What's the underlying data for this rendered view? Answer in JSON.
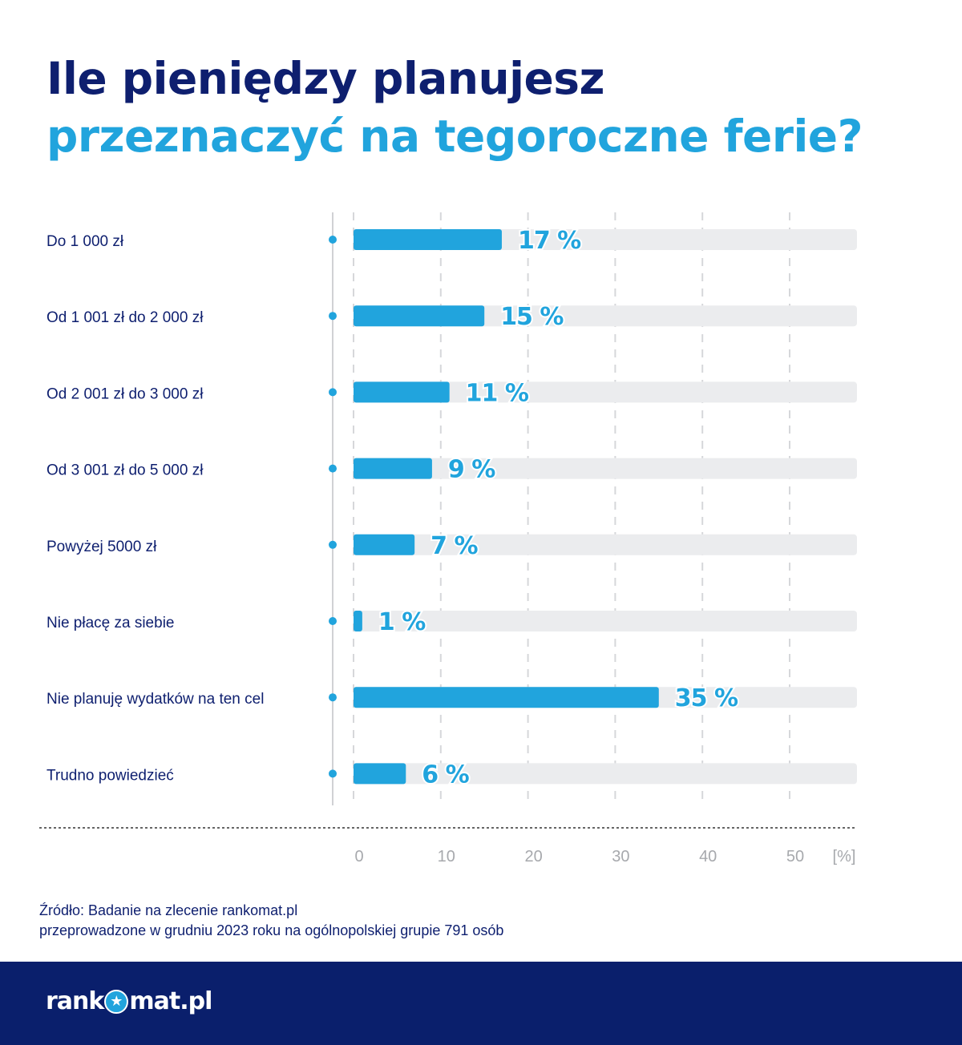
{
  "header": {
    "title_line1": "Ile pieniędzy planujesz",
    "title_line2": "przeznaczyć na tegoroczne ferie?"
  },
  "colors": {
    "bar": "#21a4dd",
    "track": "#ebecee",
    "title_dark": "#0e1f6f",
    "footer": "#0a1f6c"
  },
  "chart_data": {
    "type": "bar",
    "orientation": "horizontal",
    "categories": [
      "Do 1 000 zł",
      "Od 1 001 zł do 2 000 zł",
      "Od 2 001 zł do 3 000 zł",
      "Od 3 001 zł do 5 000 zł",
      "Powyżej 5000 zł",
      "Nie płacę za siebie",
      "Nie planuję wydatków na ten cel",
      "Trudno powiedzieć"
    ],
    "values": [
      17,
      15,
      11,
      9,
      7,
      1,
      35,
      6
    ],
    "value_labels": [
      "17 %",
      "15 %",
      "11 %",
      "9 %",
      "7 %",
      "1 %",
      "35 %",
      "6 %"
    ],
    "xticks": [
      "0",
      "10",
      "20",
      "30",
      "40",
      "50"
    ],
    "xunit": "[%]",
    "xlim": [
      0,
      50
    ],
    "grid": true
  },
  "source": {
    "line1": "Źródło: Badanie na zlecenie rankomat.pl",
    "line2": "przeprowadzone w grudniu 2023 roku na ogólnopolskiej grupie 791 osób"
  },
  "footer": {
    "logo_left": "rank",
    "logo_right": "mat.pl",
    "logo_icon": "star-icon"
  }
}
